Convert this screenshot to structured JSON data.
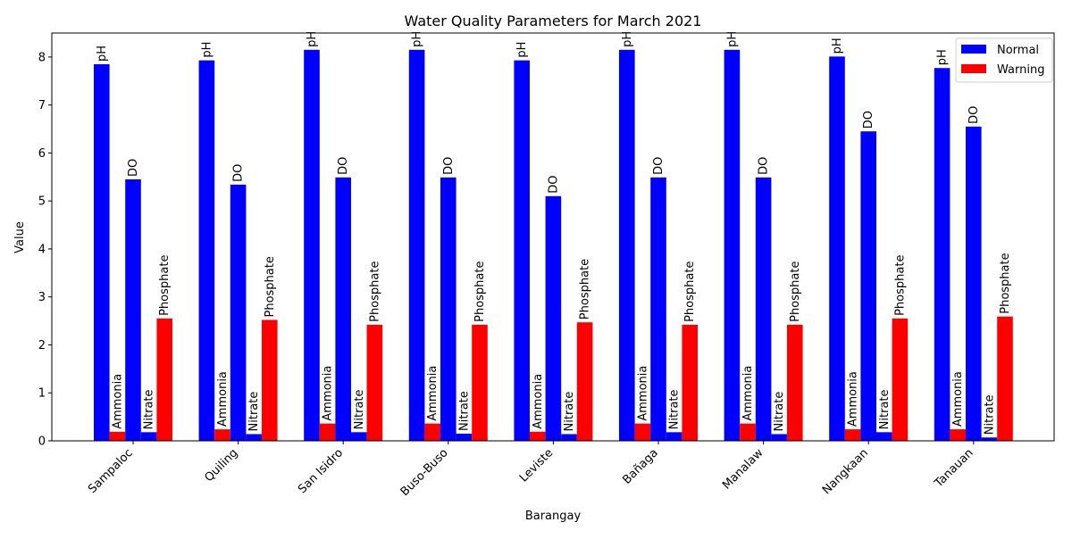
{
  "chart_data": {
    "type": "bar",
    "title": "Water Quality Parameters for March 2021",
    "xlabel": "Barangay",
    "ylabel": "Value",
    "ylim": [
      0,
      8.5
    ],
    "yticks": [
      "0",
      "1",
      "2",
      "3",
      "4",
      "5",
      "6",
      "7",
      "8"
    ],
    "categories": [
      "Sampaloc",
      "Quiling",
      "San Isidro",
      "Buso-Buso",
      "Leviste",
      "Bañaga",
      "Manalaw",
      "Nangkaan",
      "Tanauan"
    ],
    "series": [
      {
        "name": "pH",
        "status": "Normal",
        "values": [
          7.85,
          7.93,
          8.15,
          8.15,
          7.93,
          8.15,
          8.15,
          8.01,
          7.77
        ]
      },
      {
        "name": "Ammonia",
        "status": "Warning",
        "values": [
          0.19,
          0.24,
          0.36,
          0.36,
          0.19,
          0.36,
          0.36,
          0.24,
          0.24
        ]
      },
      {
        "name": "DO",
        "status": "Normal",
        "values": [
          5.45,
          5.34,
          5.49,
          5.49,
          5.1,
          5.49,
          5.49,
          6.45,
          6.55
        ]
      },
      {
        "name": "Nitrate",
        "status": "Normal",
        "values": [
          0.18,
          0.14,
          0.18,
          0.15,
          0.14,
          0.18,
          0.14,
          0.18,
          0.07
        ]
      },
      {
        "name": "Phosphate",
        "status": "Warning",
        "values": [
          2.55,
          2.52,
          2.42,
          2.42,
          2.47,
          2.42,
          2.42,
          2.55,
          2.59
        ]
      }
    ],
    "legend": {
      "position": "top-right",
      "items": [
        {
          "label": "Normal",
          "color": "#0000ff"
        },
        {
          "label": "Warning",
          "color": "#ff0000"
        }
      ]
    },
    "colors": {
      "Normal": "#0000ff",
      "Warning": "#ff0000"
    },
    "grid": false
  }
}
